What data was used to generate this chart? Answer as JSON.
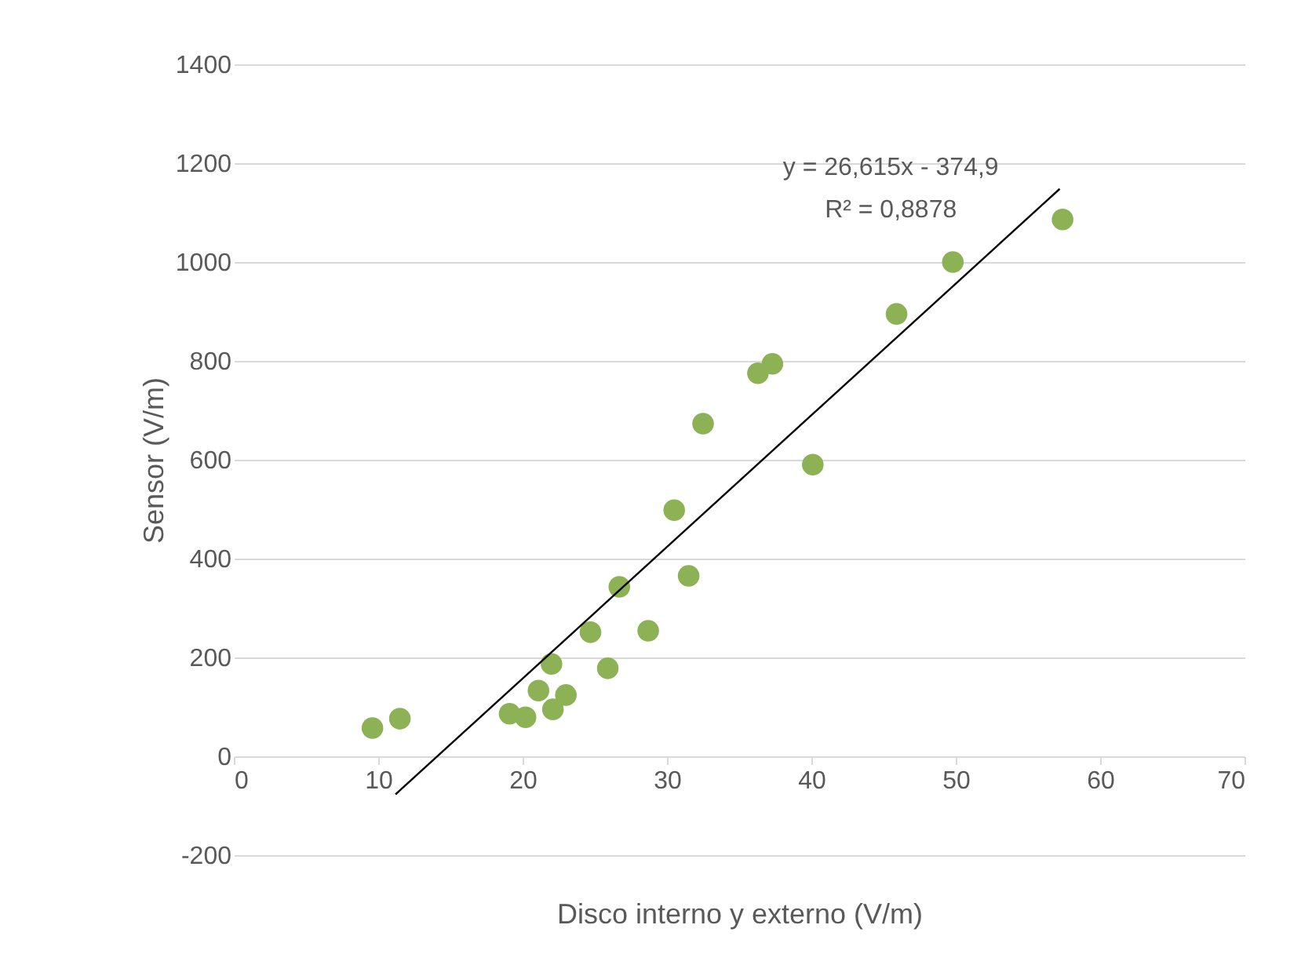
{
  "chart_data": {
    "type": "scatter",
    "xlabel": "Disco interno y externo (V/m)",
    "ylabel": "Sensor (V/m)",
    "xlim": [
      0,
      70
    ],
    "xticks": [
      0,
      10,
      20,
      30,
      40,
      50,
      60,
      70
    ],
    "ylim": [
      -200,
      1400
    ],
    "yticks": [
      -200,
      0,
      200,
      400,
      600,
      800,
      1000,
      1200,
      1400
    ],
    "grid": "y",
    "legend": false,
    "marker": "circle",
    "series": [
      {
        "color": "#8db255",
        "x": [
          9.6,
          11.5,
          19.1,
          20.2,
          21.1,
          22.0,
          22.1,
          23.0,
          24.7,
          25.9,
          26.7,
          28.7,
          30.5,
          31.5,
          32.5,
          36.3,
          37.3,
          40.1,
          45.9,
          49.8,
          57.4
        ],
        "values": [
          57,
          76,
          86,
          79,
          133,
          187,
          95,
          124,
          251,
          178,
          343,
          254,
          498,
          365,
          673,
          775,
          794,
          590,
          895,
          1000,
          1086
        ]
      },
      {
        "type": "line",
        "color": "#000000",
        "marker": "none",
        "line_style": "solid",
        "x": [
          11.2,
          57.2
        ],
        "values": [
          -77,
          1148
        ]
      }
    ],
    "annotations": [
      "y = 26,615x - 374,9",
      "R² = 0,8878"
    ]
  }
}
